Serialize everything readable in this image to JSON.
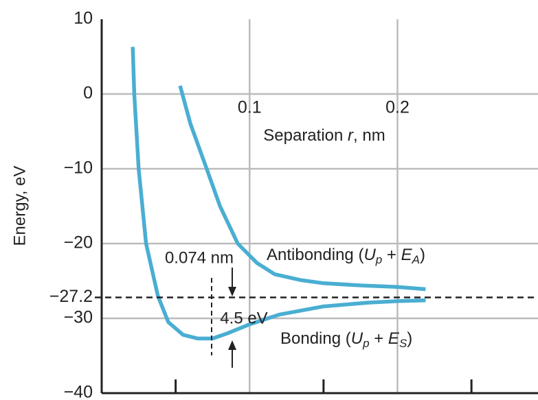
{
  "chart_data": {
    "type": "line",
    "y_label": "Energy, eV",
    "x_label_parts": [
      "Separation ",
      "r",
      ", nm"
    ],
    "xlim": [
      0,
      0.295
    ],
    "ylim": [
      -40,
      10
    ],
    "xticks": [
      0.1,
      0.2
    ],
    "x_minor_ticks": [
      0.05,
      0.15,
      0.25
    ],
    "yticks": [
      10,
      0,
      {
        "value": -10,
        "label": "−10"
      },
      {
        "value": -20,
        "label": "−20"
      },
      {
        "value": -30,
        "label": "−30"
      },
      {
        "value": -40,
        "label": "−40"
      }
    ],
    "grid": true,
    "hline": {
      "value": -27.2,
      "label": "−27.2"
    },
    "annotations": {
      "separation": "0.074 nm",
      "depth": "4.5 eV"
    },
    "series": [
      {
        "name_parts": [
          "Bonding (",
          "U",
          "p",
          " + ",
          "E",
          "S",
          ")"
        ],
        "color": "#4aaed2",
        "x": [
          0.021,
          0.022,
          0.025,
          0.03,
          0.038,
          0.045,
          0.055,
          0.065,
          0.075,
          0.085,
          0.1,
          0.12,
          0.15,
          0.18,
          0.2,
          0.219
        ],
        "values": [
          6.3,
          0,
          -10,
          -20,
          -27,
          -30.5,
          -32.2,
          -32.7,
          -32.7,
          -32.0,
          -30.8,
          -29.5,
          -28.4,
          -27.9,
          -27.7,
          -27.6
        ]
      },
      {
        "name_parts": [
          "Antibonding (",
          "U",
          "p",
          " + ",
          "E",
          "A",
          ")"
        ],
        "color": "#4aaed2",
        "x": [
          0.053,
          0.06,
          0.071,
          0.08,
          0.092,
          0.105,
          0.117,
          0.135,
          0.15,
          0.175,
          0.2,
          0.219
        ],
        "values": [
          1.1,
          -4,
          -10,
          -15,
          -20,
          -22.6,
          -24.1,
          -24.9,
          -25.3,
          -25.6,
          -25.8,
          -26.1
        ]
      }
    ]
  }
}
